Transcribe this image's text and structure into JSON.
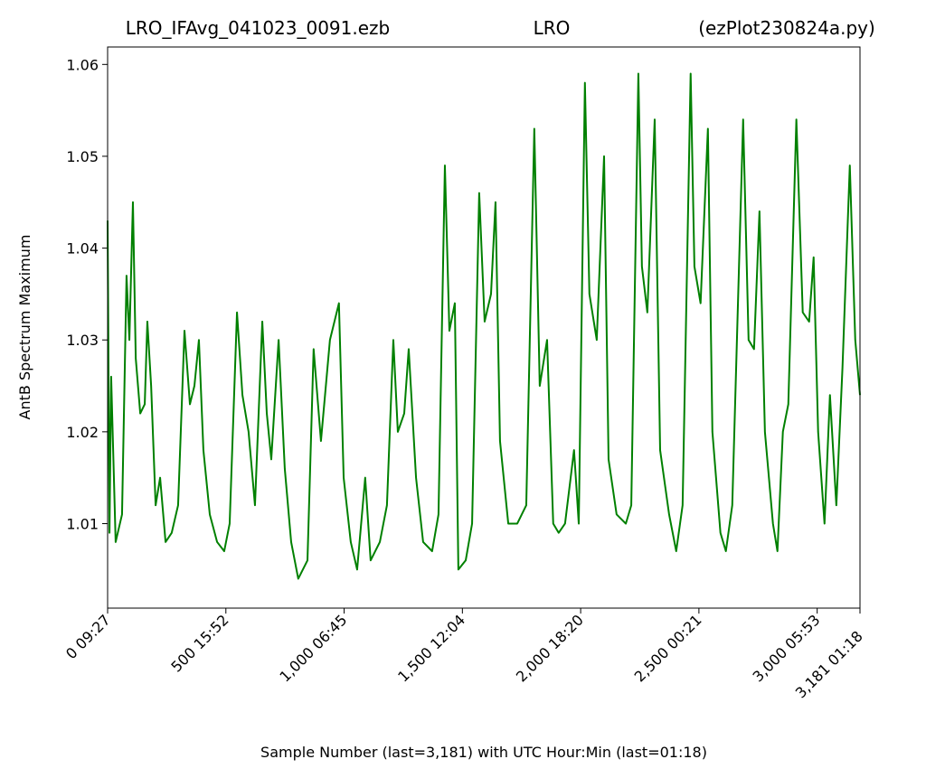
{
  "chart_data": {
    "type": "line",
    "title_left": "LRO_IFAvg_041023_0091.ezb",
    "title_center": "LRO",
    "title_right": "(ezPlot230824a.py)",
    "x_label": "Sample Number (last=3,181) with UTC Hour:Min (last=01:18)",
    "y_label": "AntB Spectrum Maximum",
    "xlim": [
      0,
      3181
    ],
    "ylim": [
      1.0008,
      1.0619
    ],
    "xticks": [
      {
        "value": 0,
        "label": "0  09:27"
      },
      {
        "value": 500,
        "label": "500  15:52"
      },
      {
        "value": 1000,
        "label": "1,000  06:45"
      },
      {
        "value": 1500,
        "label": "1,500  12:04"
      },
      {
        "value": 2000,
        "label": "2,000  18:20"
      },
      {
        "value": 2500,
        "label": "2,500  00:21"
      },
      {
        "value": 3000,
        "label": "3,000  05:53"
      },
      {
        "value": 3181,
        "label": "3,181  01:18"
      }
    ],
    "yticks": [
      1.01,
      1.02,
      1.03,
      1.04,
      1.05,
      1.06
    ],
    "series": [
      {
        "color": "#008000",
        "x": [
          0,
          8,
          15,
          34,
          61,
          80,
          92,
          107,
          119,
          138,
          157,
          168,
          184,
          203,
          222,
          245,
          271,
          298,
          325,
          348,
          367,
          386,
          405,
          432,
          463,
          493,
          516,
          547,
          570,
          596,
          623,
          654,
          673,
          692,
          723,
          749,
          776,
          806,
          845,
          871,
          902,
          940,
          978,
          998,
          1028,
          1055,
          1089,
          1112,
          1151,
          1181,
          1208,
          1227,
          1254,
          1273,
          1304,
          1334,
          1372,
          1399,
          1426,
          1445,
          1468,
          1483,
          1514,
          1541,
          1571,
          1594,
          1621,
          1640,
          1659,
          1694,
          1732,
          1770,
          1804,
          1827,
          1858,
          1884,
          1907,
          1934,
          1972,
          1992,
          2018,
          2037,
          2068,
          2099,
          2118,
          2152,
          2191,
          2214,
          2244,
          2259,
          2282,
          2313,
          2336,
          2374,
          2404,
          2431,
          2465,
          2481,
          2507,
          2538,
          2557,
          2591,
          2614,
          2641,
          2687,
          2710,
          2733,
          2756,
          2779,
          2813,
          2832,
          2855,
          2878,
          2912,
          2939,
          2966,
          2985,
          3004,
          3031,
          3054,
          3081,
          3107,
          3138,
          3161,
          3181
        ],
        "values": [
          1.043,
          1.009,
          1.026,
          1.008,
          1.011,
          1.037,
          1.03,
          1.045,
          1.028,
          1.022,
          1.023,
          1.032,
          1.025,
          1.012,
          1.015,
          1.008,
          1.009,
          1.012,
          1.031,
          1.023,
          1.025,
          1.03,
          1.018,
          1.011,
          1.008,
          1.007,
          1.01,
          1.033,
          1.024,
          1.02,
          1.012,
          1.032,
          1.022,
          1.017,
          1.03,
          1.016,
          1.008,
          1.004,
          1.006,
          1.029,
          1.019,
          1.03,
          1.034,
          1.015,
          1.008,
          1.005,
          1.015,
          1.006,
          1.008,
          1.012,
          1.03,
          1.02,
          1.022,
          1.029,
          1.015,
          1.008,
          1.007,
          1.011,
          1.049,
          1.031,
          1.034,
          1.005,
          1.006,
          1.01,
          1.046,
          1.032,
          1.035,
          1.045,
          1.019,
          1.01,
          1.01,
          1.012,
          1.053,
          1.025,
          1.03,
          1.01,
          1.009,
          1.01,
          1.018,
          1.01,
          1.058,
          1.035,
          1.03,
          1.05,
          1.017,
          1.011,
          1.01,
          1.012,
          1.059,
          1.038,
          1.033,
          1.054,
          1.018,
          1.011,
          1.007,
          1.012,
          1.059,
          1.038,
          1.034,
          1.053,
          1.02,
          1.009,
          1.007,
          1.012,
          1.054,
          1.03,
          1.029,
          1.044,
          1.02,
          1.01,
          1.007,
          1.02,
          1.023,
          1.054,
          1.033,
          1.032,
          1.039,
          1.02,
          1.01,
          1.024,
          1.012,
          1.027,
          1.049,
          1.03,
          1.024
        ]
      }
    ]
  }
}
